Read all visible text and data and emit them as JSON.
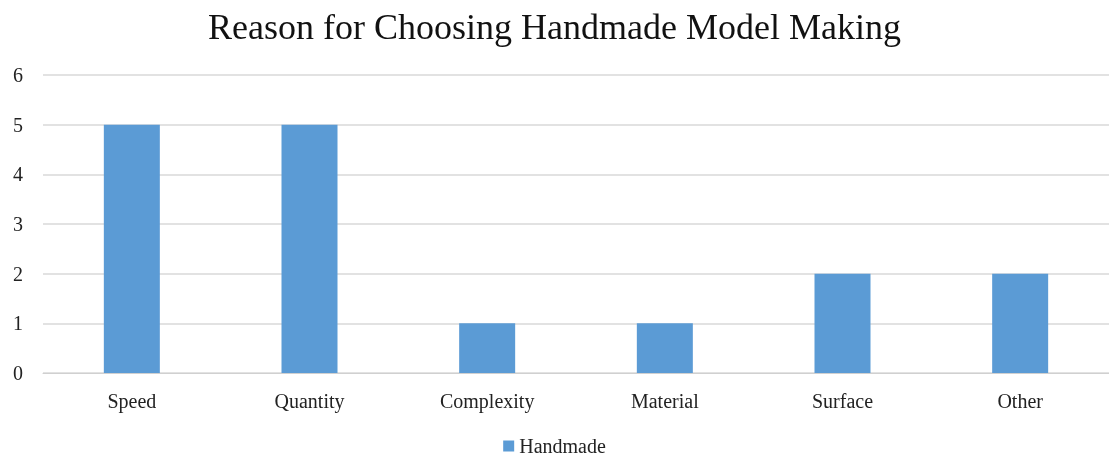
{
  "chart_data": {
    "type": "bar",
    "title": "Reason for Choosing Handmade Model Making",
    "categories": [
      "Speed",
      "Quantity",
      "Complexity",
      "Material",
      "Surface",
      "Other"
    ],
    "series": [
      {
        "name": "Handmade",
        "color": "#5b9bd5",
        "values": [
          5,
          5,
          1,
          1,
          2,
          2
        ]
      }
    ],
    "ylim": [
      0,
      6
    ],
    "yticks": [
      0,
      1,
      2,
      3,
      4,
      5,
      6
    ],
    "grid": "y",
    "legend": "bottom"
  }
}
